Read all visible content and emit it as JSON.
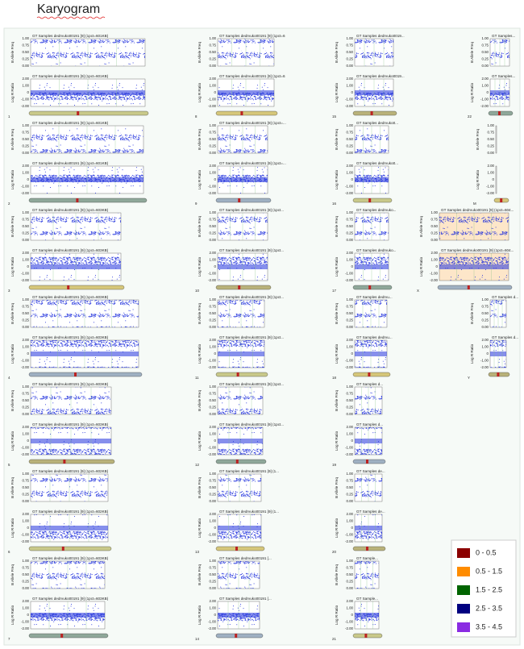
{
  "title": "Karyogram",
  "axes": {
    "baf": {
      "label": "B Allele Freq",
      "ticks": [
        "1.00",
        "0.75",
        "0.50",
        "0.25",
        "0.00"
      ]
    },
    "lrr": {
      "label": "Log R Ratio",
      "ticks": [
        "2.00",
        "1.00",
        "0",
        "-1.00",
        "-2.00"
      ]
    }
  },
  "panels": [
    {
      "chromosome": "1",
      "title": "GT Samples dedrvuko00191 [9] (1pct=601KB)"
    },
    {
      "chromosome": "2",
      "title": "GT Samples dedrvuko00191 [9] (1pct=601KB)"
    },
    {
      "chromosome": "3",
      "title": "GT Samples dedrvuko00191 [9] (1pct=603KB)"
    },
    {
      "chromosome": "4",
      "title": "GT Samples dedrvuko00191 [9] (1pct=603KB)"
    },
    {
      "chromosome": "5",
      "title": "GT Samples dedrvuko00191 [9] (1pct=603KB)"
    },
    {
      "chromosome": "6",
      "title": "GT Samples dedrvuko00191 [9] (1pct=602KB)"
    },
    {
      "chromosome": "7",
      "title": "GT Samples dedrvuko00191 [9] (1pct=603KB)"
    },
    {
      "chromosome": "8",
      "title": "GT Samples dedrvuko00191 [9] (1pct=6"
    },
    {
      "chromosome": "9",
      "title": "GT Samples dedrvuko00191 [9] (1pct=..."
    },
    {
      "chromosome": "10",
      "title": "GT Samples dedrvuko00191 [9] (1pct..."
    },
    {
      "chromosome": "11",
      "title": "GT Samples dedrvuko00191 [9] (1pct..."
    },
    {
      "chromosome": "12",
      "title": "GT Samples dedrvuko00191 [9] (1pct..."
    },
    {
      "chromosome": "13",
      "title": "GT Samples dedrvuko00191 [9] (1..."
    },
    {
      "chromosome": "14",
      "title": "GT Samples dedrvuko00191 [..."
    },
    {
      "chromosome": "15",
      "title": "GT Samples dedrvuko0019..."
    },
    {
      "chromosome": "16",
      "title": "GT Samples dedrvuko0..."
    },
    {
      "chromosome": "17",
      "title": "GT Samples dedrvuko..."
    },
    {
      "chromosome": "18",
      "title": "GT Samples dedrvu..."
    },
    {
      "chromosome": "19",
      "title": "GT Samples d..."
    },
    {
      "chromosome": "20",
      "title": "GT Samples de..."
    },
    {
      "chromosome": "21",
      "title": "GT Sample..."
    },
    {
      "chromosome": "22",
      "title": "GT Samples..."
    },
    {
      "chromosome": "M"
    },
    {
      "chromosome": "X",
      "title": "GT Samples dedrvuko00191 [9] (1pct=604..."
    },
    {
      "chromosome": "Y",
      "title": "GT Samples d..."
    }
  ],
  "legend": [
    "0 - 0.5",
    "0.5 - 1.5",
    "1.5 - 2.5",
    "2.5 - 3.5",
    "3.5 - 4.5"
  ],
  "legend_colors": [
    "#8b0000",
    "#ff8c00",
    "#006400",
    "#000080",
    "#8a2be2"
  ]
}
